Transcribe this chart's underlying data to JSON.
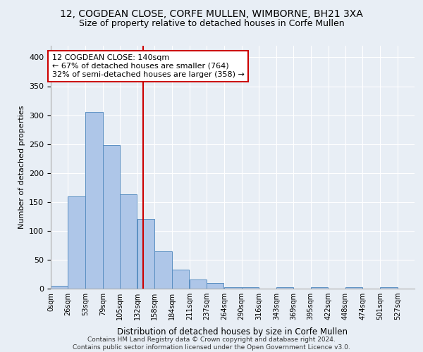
{
  "title1": "12, COGDEAN CLOSE, CORFE MULLEN, WIMBORNE, BH21 3XA",
  "title2": "Size of property relative to detached houses in Corfe Mullen",
  "xlabel": "Distribution of detached houses by size in Corfe Mullen",
  "ylabel": "Number of detached properties",
  "bin_labels": [
    "0sqm",
    "26sqm",
    "53sqm",
    "79sqm",
    "105sqm",
    "132sqm",
    "158sqm",
    "184sqm",
    "211sqm",
    "237sqm",
    "264sqm",
    "290sqm",
    "316sqm",
    "343sqm",
    "369sqm",
    "395sqm",
    "422sqm",
    "448sqm",
    "474sqm",
    "501sqm",
    "527sqm"
  ],
  "bin_edges": [
    0,
    26,
    53,
    79,
    105,
    132,
    158,
    184,
    211,
    237,
    264,
    290,
    316,
    343,
    369,
    395,
    422,
    448,
    474,
    501,
    527
  ],
  "bar_heights": [
    5,
    160,
    305,
    248,
    163,
    120,
    65,
    33,
    16,
    10,
    3,
    2,
    0,
    3,
    0,
    2,
    0,
    2,
    0,
    2,
    0
  ],
  "bar_color": "#aec6e8",
  "bar_edge_color": "#5a8fc2",
  "property_size": 140,
  "vline_color": "#cc0000",
  "annotation_line1": "12 COGDEAN CLOSE: 140sqm",
  "annotation_line2": "← 67% of detached houses are smaller (764)",
  "annotation_line3": "32% of semi-detached houses are larger (358) →",
  "annotation_box_color": "#ffffff",
  "annotation_box_edge": "#cc0000",
  "ylim": [
    0,
    420
  ],
  "footnote": "Contains HM Land Registry data © Crown copyright and database right 2024.\nContains public sector information licensed under the Open Government Licence v3.0.",
  "bg_color": "#e8eef5",
  "plot_bg_color": "#e8eef5",
  "title_fontsize": 10,
  "subtitle_fontsize": 9,
  "annotation_fontsize": 8
}
